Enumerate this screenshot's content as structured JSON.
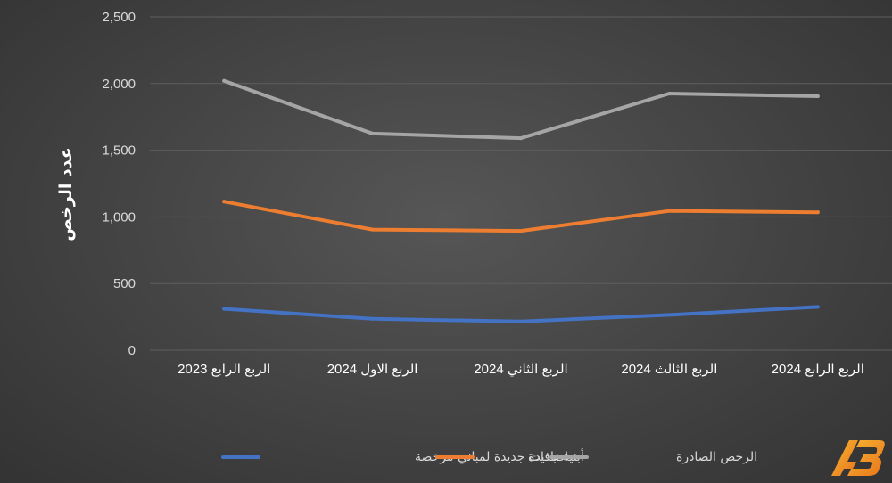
{
  "chart_data": {
    "type": "line",
    "ylabel": "عدد الرخص",
    "xlabel": "",
    "ylim": [
      0,
      2500
    ],
    "yticks": [
      0,
      500,
      1000,
      1500,
      2000,
      2500
    ],
    "ytick_labels": [
      "0",
      "500",
      "1,000",
      "1,500",
      "2,000",
      "2,500"
    ],
    "categories": [
      "الربع الرابع 2023",
      "الربع الاول 2024",
      "الربع الثاني 2024",
      "الربع الثالث 2024",
      "الربع الرابع 2024"
    ],
    "grid": true,
    "legend_position": "bottom",
    "series": [
      {
        "name": "اضافات جديدة لمباني مرخصة",
        "color": "#4472c4",
        "values": [
          310,
          235,
          215,
          265,
          325
        ]
      },
      {
        "name": "أبنية جديدة",
        "color": "#ed7d31",
        "values": [
          1115,
          905,
          895,
          1045,
          1035
        ]
      },
      {
        "name": "الرخص الصادرة",
        "color": "#a5a5a5",
        "values": [
          2020,
          1625,
          1590,
          1925,
          1905
        ]
      }
    ]
  },
  "logo": {
    "name": "logo-icon",
    "colors": [
      "#f5a623",
      "#e8731a"
    ]
  }
}
